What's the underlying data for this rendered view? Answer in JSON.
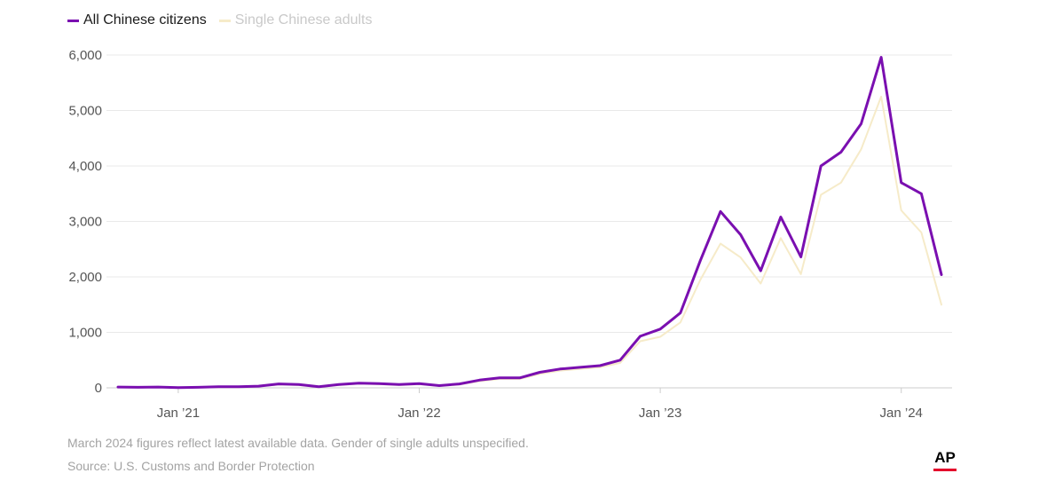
{
  "legend": {
    "series1": "All Chinese citizens",
    "series2": "Single Chinese adults"
  },
  "colors": {
    "series1": "#7a0fb0",
    "series2": "#f6ebc9",
    "grid": "#e9e9e9",
    "axis": "#cccccc",
    "tick_text": "#555555",
    "brand_red": "#e4002b"
  },
  "footnotes": {
    "note": "March 2024 figures reflect latest available data. Gender of single adults unspecified.",
    "source": "Source: U.S. Customs and Border Protection"
  },
  "logo": {
    "text": "AP"
  },
  "chart_data": {
    "type": "line",
    "grid": true,
    "legend_position": "top-left",
    "ylim": [
      0,
      6000
    ],
    "y_ticks": [
      0,
      1000,
      2000,
      3000,
      4000,
      5000,
      6000
    ],
    "y_tick_labels": [
      "0",
      "1,000",
      "2,000",
      "3,000",
      "4,000",
      "5,000",
      "6,000"
    ],
    "x_start": "2020-10",
    "x_end": "2024-03",
    "x_ticks": [
      {
        "date": "2021-01",
        "label": "Jan ’21"
      },
      {
        "date": "2022-01",
        "label": "Jan ’22"
      },
      {
        "date": "2023-01",
        "label": "Jan ’23"
      },
      {
        "date": "2024-01",
        "label": "Jan ’24"
      }
    ],
    "x": [
      "2020-10",
      "2020-11",
      "2020-12",
      "2021-01",
      "2021-02",
      "2021-03",
      "2021-04",
      "2021-05",
      "2021-06",
      "2021-07",
      "2021-08",
      "2021-09",
      "2021-10",
      "2021-11",
      "2021-12",
      "2022-01",
      "2022-02",
      "2022-03",
      "2022-04",
      "2022-05",
      "2022-06",
      "2022-07",
      "2022-08",
      "2022-09",
      "2022-10",
      "2022-11",
      "2022-12",
      "2023-01",
      "2023-02",
      "2023-03",
      "2023-04",
      "2023-05",
      "2023-06",
      "2023-07",
      "2023-08",
      "2023-09",
      "2023-10",
      "2023-11",
      "2023-12",
      "2024-01",
      "2024-02",
      "2024-03"
    ],
    "series": [
      {
        "name": "All Chinese citizens",
        "values": [
          15,
          10,
          15,
          5,
          10,
          20,
          20,
          30,
          70,
          60,
          20,
          60,
          85,
          75,
          60,
          75,
          40,
          70,
          140,
          180,
          180,
          280,
          340,
          370,
          400,
          500,
          930,
          1060,
          1350,
          2300,
          3180,
          2760,
          2110,
          3080,
          2360,
          4000,
          4250,
          4760,
          5960,
          3700,
          3500,
          2040
        ]
      },
      {
        "name": "Single Chinese adults",
        "values": [
          10,
          8,
          10,
          5,
          8,
          15,
          15,
          25,
          60,
          50,
          15,
          50,
          75,
          65,
          50,
          65,
          35,
          60,
          120,
          160,
          160,
          250,
          310,
          340,
          370,
          450,
          840,
          920,
          1180,
          1950,
          2600,
          2350,
          1880,
          2700,
          2050,
          3480,
          3700,
          4300,
          5250,
          3200,
          2800,
          1500
        ]
      }
    ]
  }
}
